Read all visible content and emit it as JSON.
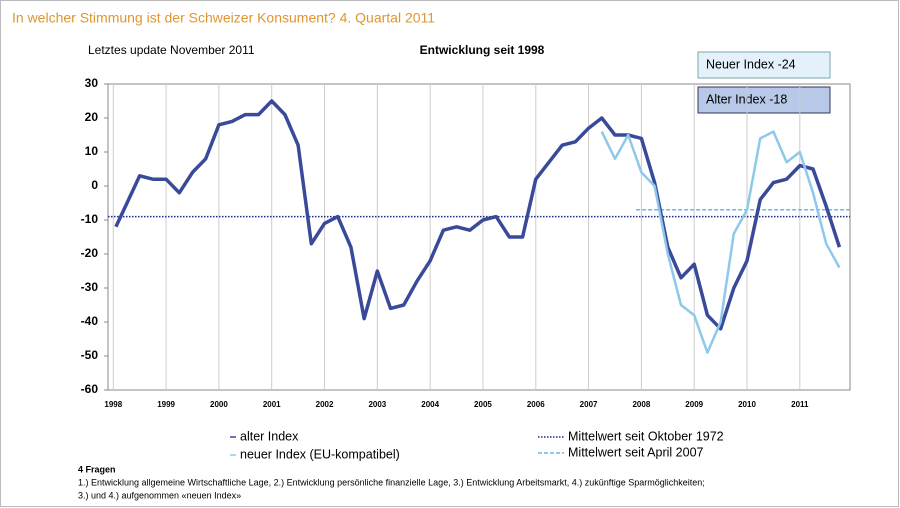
{
  "chart_data": {
    "type": "line",
    "title": "In welcher Stimmung ist der Schweizer Konsument? 4. Quartal 2011",
    "subtitle_left": "Letztes update November 2011",
    "subtitle_center": "Entwicklung seit 1998",
    "annotations": [
      "Neuer Index -24",
      "Alter Index -18"
    ],
    "xlim": [
      1997.9,
      2011.95
    ],
    "xticks": [
      1998,
      1999,
      2000,
      2001,
      2002,
      2003,
      2004,
      2005,
      2006,
      2007,
      2008,
      2009,
      2010,
      2011
    ],
    "ylim": [
      -60,
      30
    ],
    "yticks": [
      30,
      20,
      10,
      0,
      -10,
      -20,
      -30,
      -40,
      -50,
      -60
    ],
    "grid": "x",
    "series": [
      {
        "name": "alter Index",
        "color": "#3a4a9a",
        "x": [
          1998.05,
          1998.5,
          1998.75,
          1999.0,
          1999.25,
          1999.5,
          1999.75,
          2000.0,
          2000.25,
          2000.5,
          2000.75,
          2001.0,
          2001.25,
          2001.5,
          2001.75,
          2002.0,
          2002.25,
          2002.5,
          2002.75,
          2003.0,
          2003.25,
          2003.5,
          2003.75,
          2004.0,
          2004.25,
          2004.5,
          2004.75,
          2005.0,
          2005.25,
          2005.5,
          2005.75,
          2006.0,
          2006.25,
          2006.5,
          2006.75,
          2007.0,
          2007.25,
          2007.5,
          2007.75,
          2008.0,
          2008.25,
          2008.5,
          2008.75,
          2009.0,
          2009.25,
          2009.5,
          2009.75,
          2010.0,
          2010.25,
          2010.5,
          2010.75,
          2011.0,
          2011.25,
          2011.5,
          2011.75
        ],
        "values": [
          -12,
          3,
          2,
          2,
          -2,
          4,
          8,
          18,
          19,
          21,
          21,
          25,
          21,
          12,
          -17,
          -11,
          -9,
          -18,
          -39,
          -25,
          -36,
          -35,
          -28,
          -22,
          -13,
          -12,
          -13,
          -10,
          -9,
          -15,
          -15,
          2,
          7,
          12,
          13,
          17,
          20,
          15,
          15,
          14,
          1,
          -18,
          -27,
          -23,
          -38,
          -42,
          -30,
          -22,
          -4,
          1,
          2,
          6,
          5,
          -6,
          -18
        ]
      },
      {
        "name": "neuer Index (EU-kompatibel)",
        "color": "#8ec8ea",
        "x": [
          2007.25,
          2007.5,
          2007.75,
          2008.0,
          2008.25,
          2008.5,
          2008.75,
          2009.0,
          2009.25,
          2009.5,
          2009.75,
          2010.0,
          2010.25,
          2010.5,
          2010.75,
          2011.0,
          2011.25,
          2011.5,
          2011.75
        ],
        "values": [
          16,
          8,
          15,
          4,
          0,
          -20,
          -35,
          -38,
          -49,
          -40,
          -14,
          -7,
          14,
          16,
          7,
          10,
          -2,
          -17,
          -24
        ]
      }
    ],
    "reference_lines": [
      {
        "name": "Mittelwert seit Oktober 1972",
        "color": "#1a2a8a",
        "style": "dotted",
        "value": -9
      },
      {
        "name": "Mittelwert seit April 2007",
        "color": "#6ab8e8",
        "style": "dashed",
        "value": -7,
        "x_start": 2007.9
      }
    ],
    "footnote": {
      "heading": "4 Fragen",
      "lines": [
        "1.) Entwicklung allgemeine Wirtschaftliche Lage, 2.) Entwicklung persönliche finanzielle Lage, 3.) Entwicklung Arbeitsmarkt, 4.) zukünftige Sparmöglichkeiten;",
        "3.) und 4.) aufgenommen «neuen Index»"
      ]
    }
  }
}
